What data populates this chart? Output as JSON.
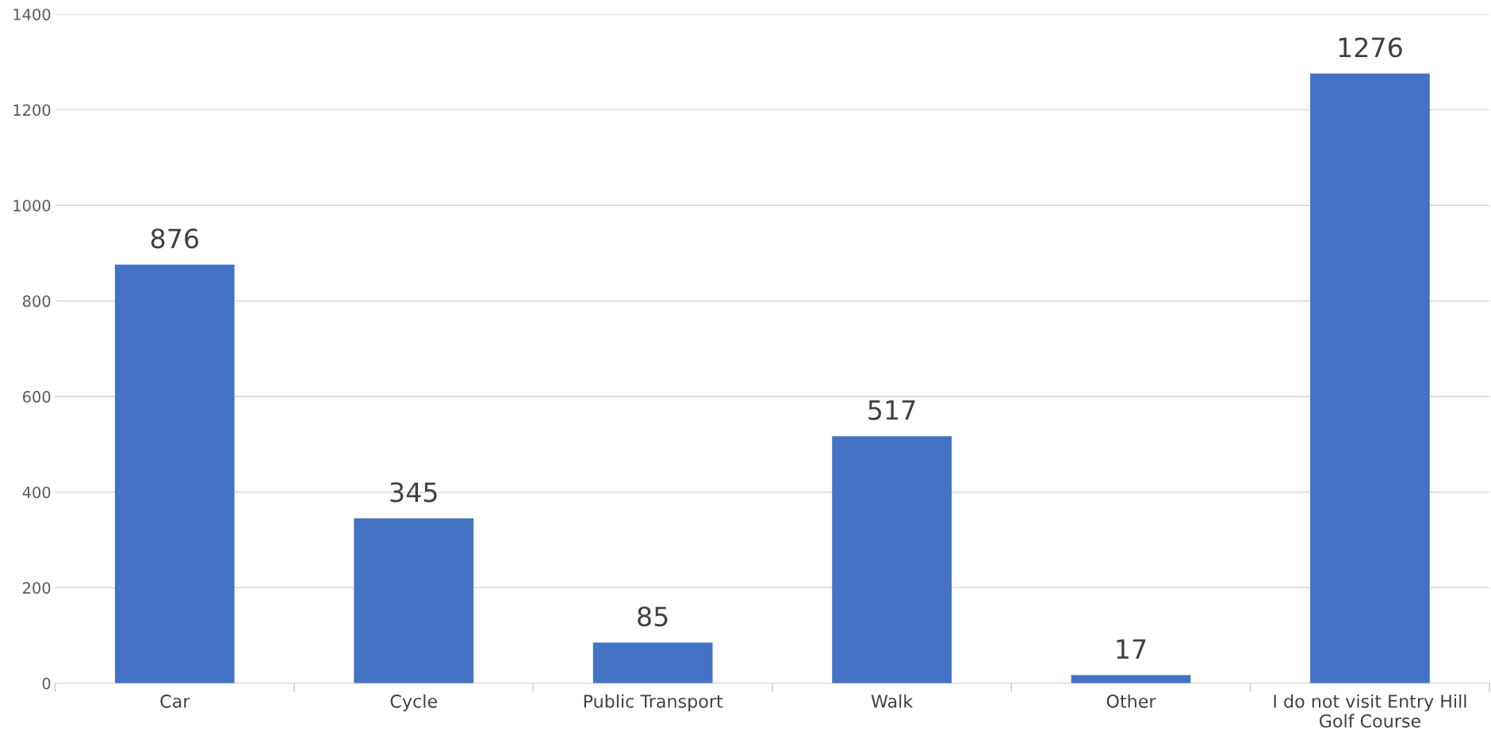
{
  "chart_data": {
    "type": "bar",
    "categories": [
      "Car",
      "Cycle",
      "Public Transport",
      "Walk",
      "Other",
      "I do not visit Entry Hill\nGolf Course"
    ],
    "values": [
      876,
      345,
      85,
      517,
      17,
      1276
    ],
    "color": "#4472c4",
    "ylim": [
      0,
      1400
    ],
    "yticks": [
      0,
      200,
      400,
      600,
      800,
      1000,
      1200,
      1400
    ],
    "grid": "y",
    "data_labels": true
  }
}
